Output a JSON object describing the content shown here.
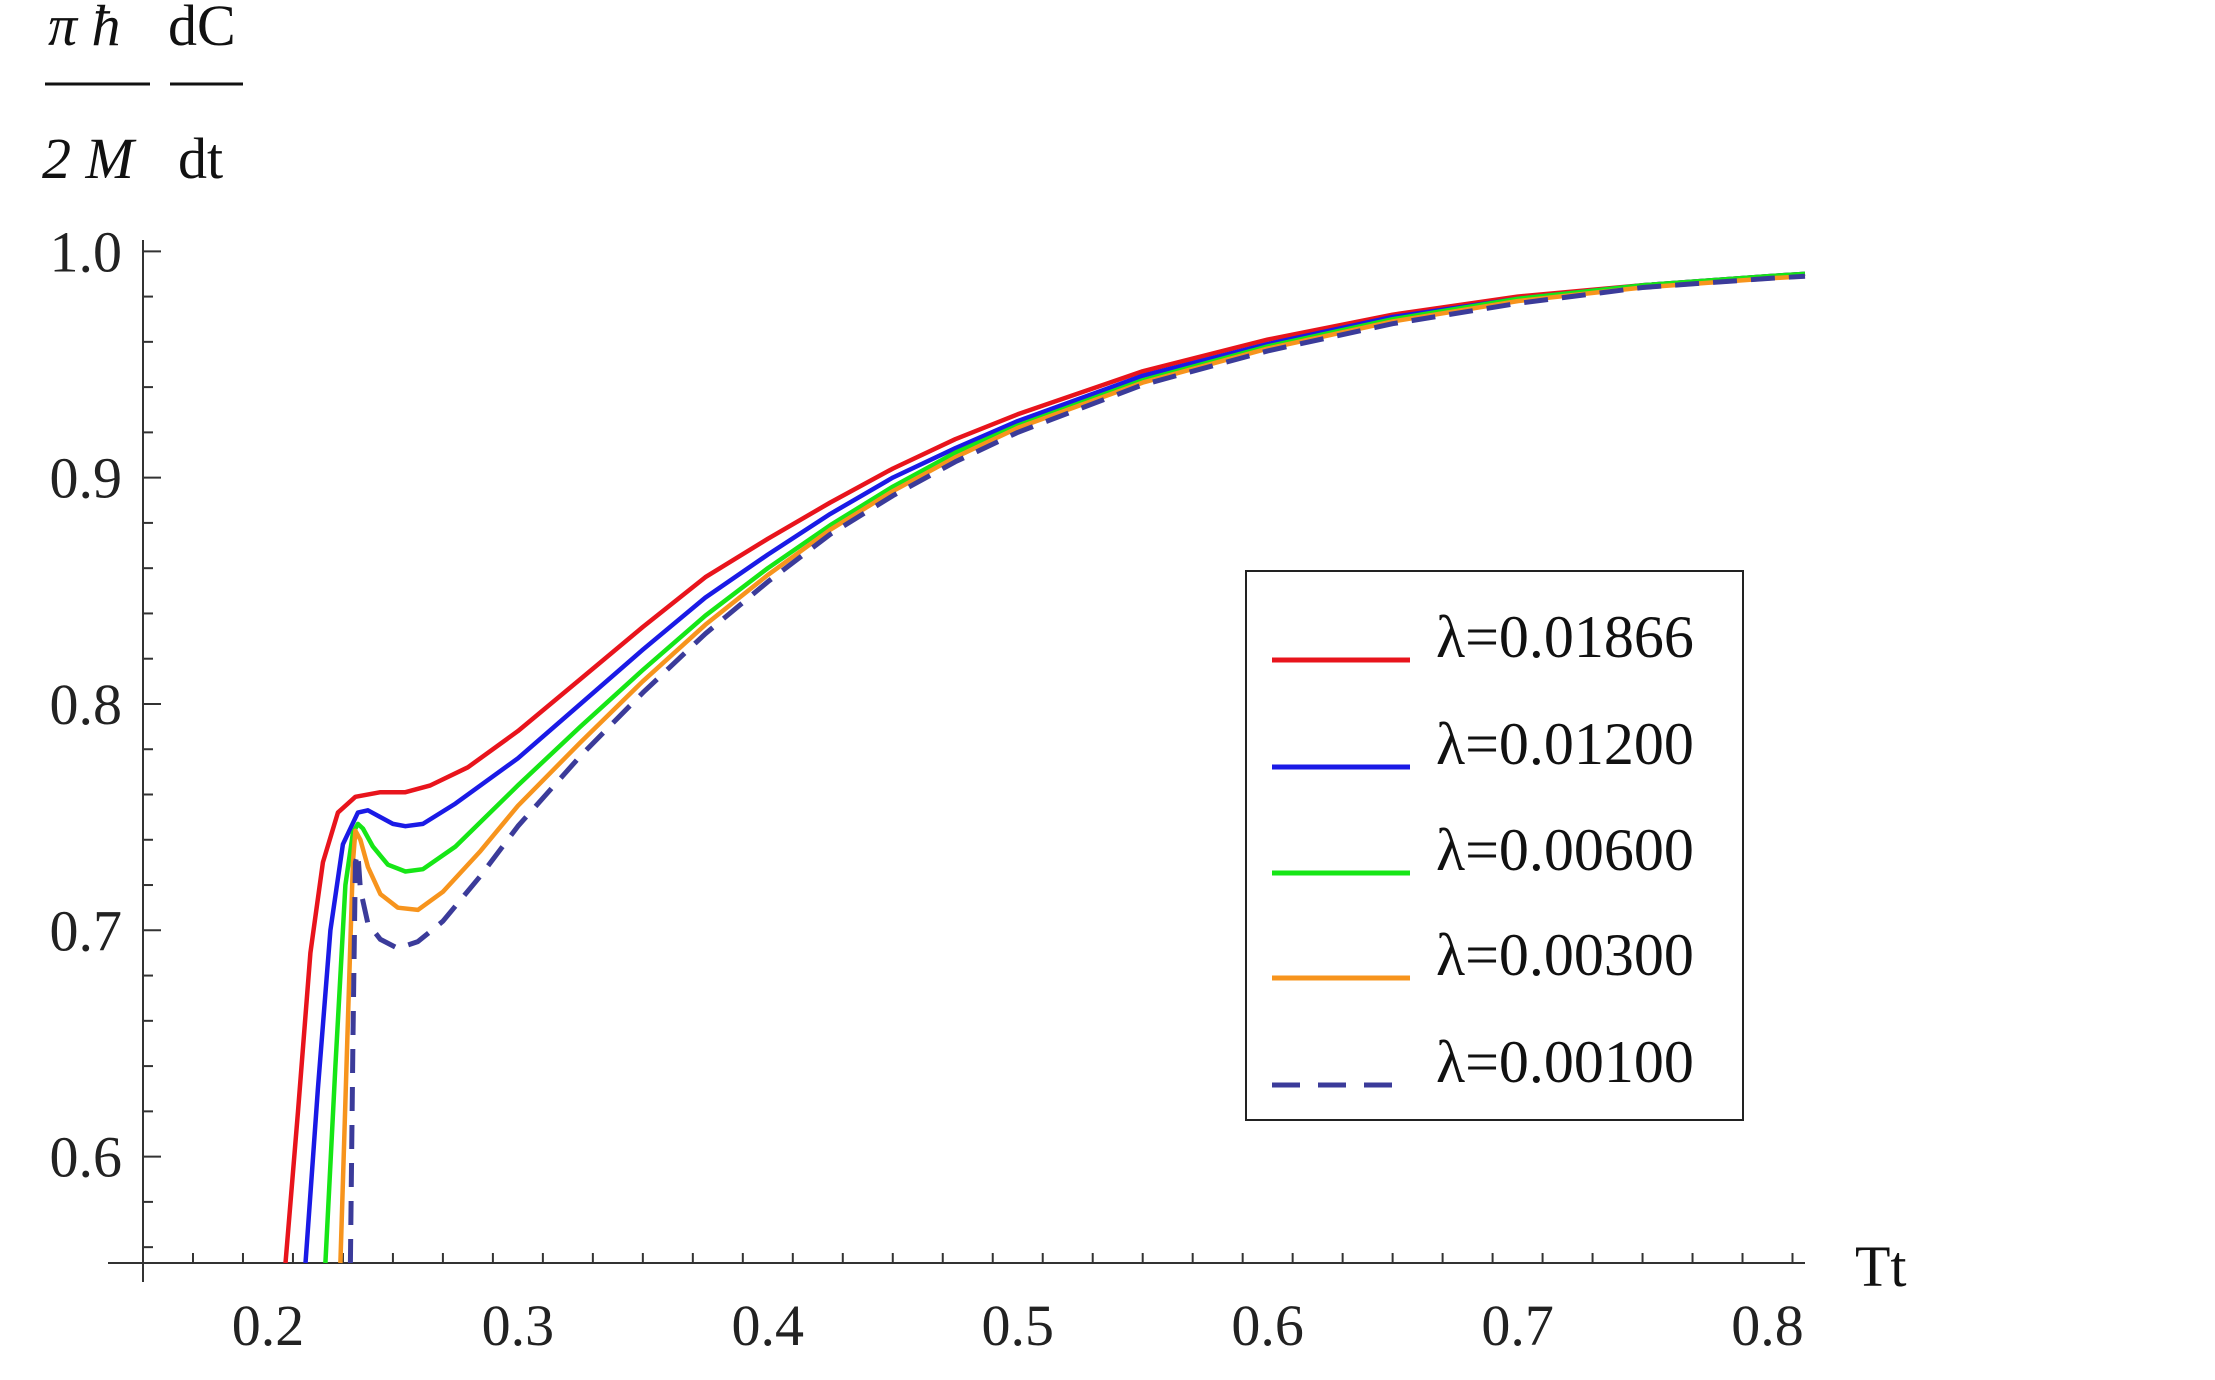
{
  "chart_data": {
    "type": "line",
    "xlabel": "Tt",
    "ylabel": {
      "num_left": "π ħ",
      "den_left": "2 M",
      "num_right": "dC",
      "den_right": "dt"
    },
    "xlim": [
      0.15,
      0.815
    ],
    "ylim": [
      0.553,
      1.005
    ],
    "x_ticks": [
      0.2,
      0.3,
      0.4,
      0.5,
      0.6,
      0.7,
      0.8
    ],
    "x_tick_labels": [
      "0.2",
      "0.3",
      "0.4",
      "0.5",
      "0.6",
      "0.7",
      "0.8"
    ],
    "y_ticks": [
      0.6,
      0.7,
      0.8,
      0.9,
      1.0
    ],
    "y_tick_labels": [
      "0.6",
      "0.7",
      "0.8",
      "0.9",
      "1.0"
    ],
    "grid": false,
    "legend_position": "center-right",
    "series": [
      {
        "name": "λ=0.01866",
        "color": "#e8141c",
        "dashed": false,
        "points": [
          [
            0.207,
            0.553
          ],
          [
            0.212,
            0.62
          ],
          [
            0.217,
            0.69
          ],
          [
            0.222,
            0.73
          ],
          [
            0.228,
            0.752
          ],
          [
            0.235,
            0.759
          ],
          [
            0.245,
            0.761
          ],
          [
            0.255,
            0.761
          ],
          [
            0.265,
            0.764
          ],
          [
            0.28,
            0.772
          ],
          [
            0.3,
            0.788
          ],
          [
            0.325,
            0.811
          ],
          [
            0.35,
            0.834
          ],
          [
            0.375,
            0.856
          ],
          [
            0.4,
            0.873
          ],
          [
            0.425,
            0.889
          ],
          [
            0.45,
            0.904
          ],
          [
            0.475,
            0.917
          ],
          [
            0.5,
            0.928
          ],
          [
            0.55,
            0.947
          ],
          [
            0.6,
            0.961
          ],
          [
            0.65,
            0.972
          ],
          [
            0.7,
            0.98
          ],
          [
            0.75,
            0.985
          ],
          [
            0.8,
            0.989
          ],
          [
            0.815,
            0.99
          ]
        ]
      },
      {
        "name": "λ=0.01200",
        "color": "#1a1ae6",
        "dashed": false,
        "points": [
          [
            0.215,
            0.553
          ],
          [
            0.22,
            0.63
          ],
          [
            0.225,
            0.7
          ],
          [
            0.23,
            0.738
          ],
          [
            0.236,
            0.752
          ],
          [
            0.24,
            0.753
          ],
          [
            0.245,
            0.75
          ],
          [
            0.25,
            0.747
          ],
          [
            0.255,
            0.746
          ],
          [
            0.262,
            0.747
          ],
          [
            0.275,
            0.756
          ],
          [
            0.3,
            0.776
          ],
          [
            0.325,
            0.8
          ],
          [
            0.35,
            0.824
          ],
          [
            0.375,
            0.847
          ],
          [
            0.4,
            0.866
          ],
          [
            0.425,
            0.884
          ],
          [
            0.45,
            0.9
          ],
          [
            0.475,
            0.913
          ],
          [
            0.5,
            0.925
          ],
          [
            0.55,
            0.945
          ],
          [
            0.6,
            0.959
          ],
          [
            0.65,
            0.971
          ],
          [
            0.7,
            0.979
          ],
          [
            0.75,
            0.985
          ],
          [
            0.8,
            0.989
          ],
          [
            0.815,
            0.99
          ]
        ]
      },
      {
        "name": "λ=0.00600",
        "color": "#16e616",
        "dashed": false,
        "points": [
          [
            0.223,
            0.553
          ],
          [
            0.227,
            0.64
          ],
          [
            0.231,
            0.72
          ],
          [
            0.234,
            0.743
          ],
          [
            0.236,
            0.747
          ],
          [
            0.238,
            0.745
          ],
          [
            0.242,
            0.737
          ],
          [
            0.248,
            0.729
          ],
          [
            0.255,
            0.726
          ],
          [
            0.262,
            0.727
          ],
          [
            0.275,
            0.737
          ],
          [
            0.3,
            0.764
          ],
          [
            0.325,
            0.79
          ],
          [
            0.35,
            0.815
          ],
          [
            0.375,
            0.839
          ],
          [
            0.4,
            0.86
          ],
          [
            0.425,
            0.879
          ],
          [
            0.45,
            0.896
          ],
          [
            0.475,
            0.911
          ],
          [
            0.5,
            0.923
          ],
          [
            0.55,
            0.943
          ],
          [
            0.6,
            0.958
          ],
          [
            0.65,
            0.97
          ],
          [
            0.7,
            0.979
          ],
          [
            0.75,
            0.985
          ],
          [
            0.8,
            0.989
          ],
          [
            0.815,
            0.99
          ]
        ]
      },
      {
        "name": "λ=0.00300",
        "color": "#f7941d",
        "dashed": false,
        "points": [
          [
            0.229,
            0.553
          ],
          [
            0.232,
            0.66
          ],
          [
            0.234,
            0.73
          ],
          [
            0.235,
            0.744
          ],
          [
            0.237,
            0.74
          ],
          [
            0.24,
            0.728
          ],
          [
            0.245,
            0.716
          ],
          [
            0.252,
            0.71
          ],
          [
            0.26,
            0.709
          ],
          [
            0.27,
            0.717
          ],
          [
            0.285,
            0.735
          ],
          [
            0.3,
            0.755
          ],
          [
            0.325,
            0.783
          ],
          [
            0.35,
            0.81
          ],
          [
            0.375,
            0.835
          ],
          [
            0.4,
            0.857
          ],
          [
            0.425,
            0.877
          ],
          [
            0.45,
            0.894
          ],
          [
            0.475,
            0.909
          ],
          [
            0.5,
            0.922
          ],
          [
            0.55,
            0.942
          ],
          [
            0.6,
            0.957
          ],
          [
            0.65,
            0.969
          ],
          [
            0.7,
            0.978
          ],
          [
            0.75,
            0.984
          ],
          [
            0.8,
            0.988
          ],
          [
            0.815,
            0.989
          ]
        ]
      },
      {
        "name": "λ=0.00100",
        "color": "#3b3b9a",
        "dashed": true,
        "points": [
          [
            0.233,
            0.553
          ],
          [
            0.234,
            0.65
          ],
          [
            0.235,
            0.73
          ],
          [
            0.236,
            0.734
          ],
          [
            0.237,
            0.718
          ],
          [
            0.24,
            0.703
          ],
          [
            0.245,
            0.696
          ],
          [
            0.252,
            0.692
          ],
          [
            0.26,
            0.695
          ],
          [
            0.27,
            0.704
          ],
          [
            0.285,
            0.724
          ],
          [
            0.3,
            0.746
          ],
          [
            0.325,
            0.777
          ],
          [
            0.35,
            0.805
          ],
          [
            0.375,
            0.831
          ],
          [
            0.4,
            0.854
          ],
          [
            0.425,
            0.875
          ],
          [
            0.45,
            0.892
          ],
          [
            0.475,
            0.907
          ],
          [
            0.5,
            0.92
          ],
          [
            0.55,
            0.941
          ],
          [
            0.6,
            0.956
          ],
          [
            0.65,
            0.968
          ],
          [
            0.7,
            0.977
          ],
          [
            0.75,
            0.984
          ],
          [
            0.8,
            0.988
          ],
          [
            0.815,
            0.989
          ]
        ]
      }
    ]
  }
}
